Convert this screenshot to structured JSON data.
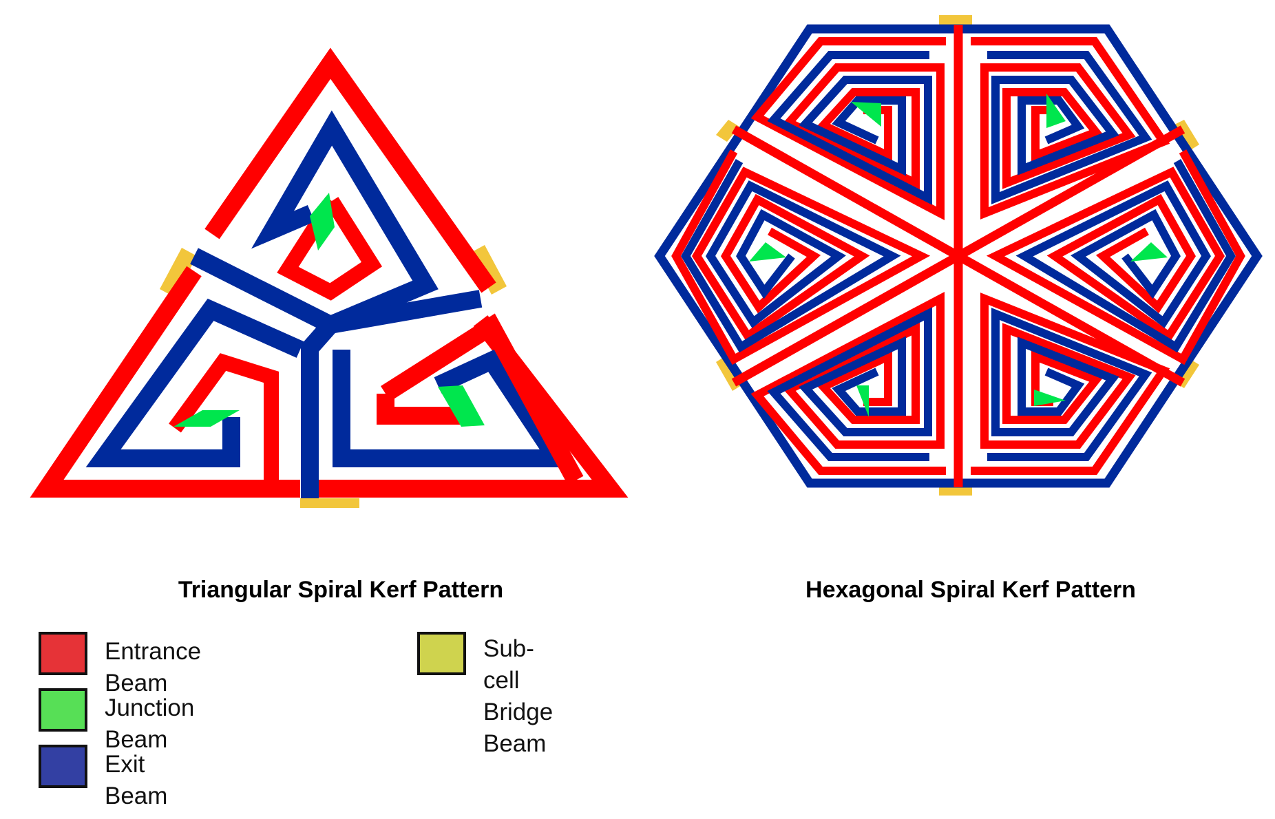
{
  "colors": {
    "entrance": "#ff0000",
    "exit": "#002a9c",
    "junction": "#00e64d",
    "bridge": "#f2c63b",
    "legend_entrance": "#e63337",
    "legend_junction": "#57df56",
    "legend_exit": "#3340a3",
    "legend_bridge": "#cfd34e"
  },
  "patterns": {
    "triangular": {
      "caption": "Triangular Spiral Kerf Pattern"
    },
    "hexagonal": {
      "caption": "Hexagonal Spiral Kerf Pattern"
    }
  },
  "legend": [
    {
      "label": "Entrance Beam",
      "color": "#e63337"
    },
    {
      "label": "Junction Beam",
      "color": "#57df56"
    },
    {
      "label": "Exit Beam",
      "color": "#3340a3"
    },
    {
      "label": "Sub-cell\nBridge\nBeam",
      "color": "#cfd34e"
    }
  ]
}
